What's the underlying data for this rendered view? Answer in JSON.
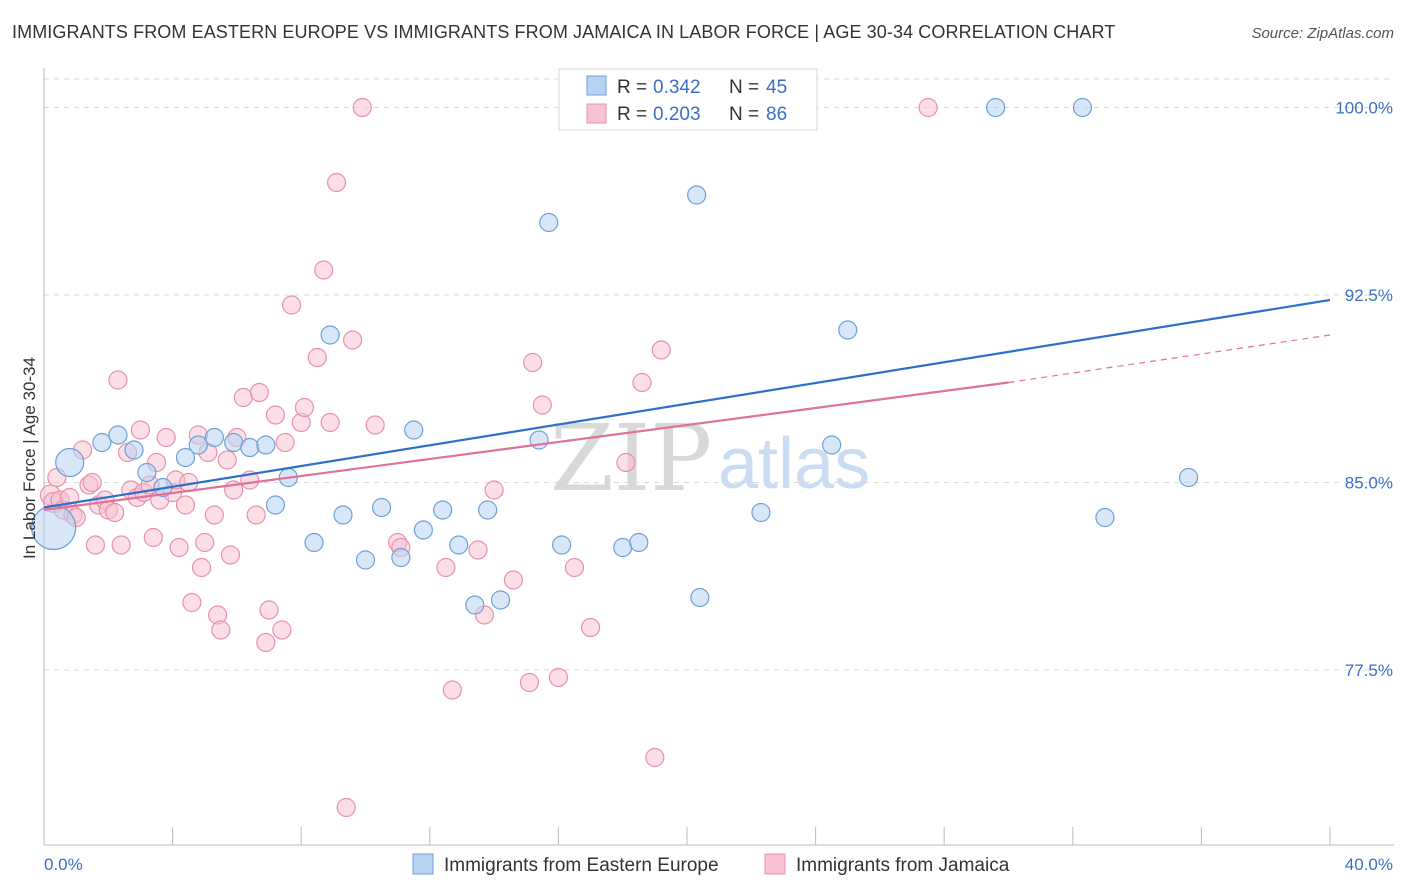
{
  "header": {
    "title": "IMMIGRANTS FROM EASTERN EUROPE VS IMMIGRANTS FROM JAMAICA IN LABOR FORCE | AGE 30-34 CORRELATION CHART",
    "source": "Source: ZipAtlas.com"
  },
  "watermark": {
    "part1": "ZIP",
    "part2": "atlas"
  },
  "colors": {
    "blue_fill": "#b8d3f2",
    "blue_stroke": "#6d9fd8",
    "blue_line": "#2f6fca",
    "pink_fill": "#f7c3d2",
    "pink_stroke": "#e890aa",
    "pink_line": "#e0729a",
    "grid": "#d9d9d9",
    "axis_text": "#3a6fc4"
  },
  "legend": {
    "rows": [
      {
        "r_label": "R = ",
        "r_value": "0.342",
        "n_label": "N = ",
        "n_value": "45"
      },
      {
        "r_label": "R = ",
        "r_value": "0.203",
        "n_label": "N = ",
        "n_value": "86"
      }
    ]
  },
  "chart_data": {
    "type": "scatter",
    "title": "IMMIGRANTS FROM EASTERN EUROPE VS IMMIGRANTS FROM JAMAICA IN LABOR FORCE | AGE 30-34 CORRELATION CHART",
    "xlabel": "",
    "ylabel": "In Labor Force | Age 30-34",
    "xlim": [
      0,
      40
    ],
    "ylim": [
      70.5,
      101.5
    ],
    "x_tick_labels": [
      "0.0%",
      "40.0%"
    ],
    "y_ticks": [
      77.5,
      85.0,
      92.5,
      100.0
    ],
    "y_tick_labels": [
      "77.5%",
      "85.0%",
      "92.5%",
      "100.0%"
    ],
    "grid": "horizontal dashed",
    "legend_position": "top-center",
    "series": [
      {
        "name": "Immigrants from Eastern Europe",
        "color": "#6d9fd8",
        "R": 0.342,
        "N": 45,
        "trend": {
          "x": [
            0,
            40
          ],
          "y": [
            84.0,
            92.3
          ]
        },
        "points": [
          [
            0.3,
            83.2,
            22
          ],
          [
            0.8,
            85.8,
            14
          ],
          [
            1.8,
            86.6,
            9
          ],
          [
            2.3,
            86.9,
            9
          ],
          [
            2.8,
            86.3,
            9
          ],
          [
            3.2,
            85.4,
            9
          ],
          [
            3.7,
            84.8,
            9
          ],
          [
            4.4,
            86.0,
            9
          ],
          [
            4.8,
            86.5,
            9
          ],
          [
            5.3,
            86.8,
            9
          ],
          [
            5.9,
            86.6,
            9
          ],
          [
            6.4,
            86.4,
            9
          ],
          [
            6.9,
            86.5,
            9
          ],
          [
            7.6,
            85.2,
            9
          ],
          [
            7.2,
            84.1,
            9
          ],
          [
            8.4,
            82.6,
            9
          ],
          [
            8.9,
            90.9,
            9
          ],
          [
            9.3,
            83.7,
            9
          ],
          [
            10.0,
            81.9,
            9
          ],
          [
            10.5,
            84.0,
            9
          ],
          [
            11.1,
            82.0,
            9
          ],
          [
            11.5,
            87.1,
            9
          ],
          [
            11.8,
            83.1,
            9
          ],
          [
            12.4,
            83.9,
            9
          ],
          [
            12.9,
            82.5,
            9
          ],
          [
            13.4,
            80.1,
            9
          ],
          [
            13.8,
            83.9,
            9
          ],
          [
            14.2,
            80.3,
            9
          ],
          [
            15.4,
            86.7,
            9
          ],
          [
            15.7,
            95.4,
            9
          ],
          [
            16.1,
            82.5,
            9
          ],
          [
            18.0,
            82.4,
            9
          ],
          [
            18.5,
            82.6,
            9
          ],
          [
            19.1,
            100.0,
            9
          ],
          [
            20.4,
            80.4,
            9
          ],
          [
            20.3,
            96.5,
            9
          ],
          [
            22.0,
            100.0,
            9
          ],
          [
            22.3,
            83.8,
            9
          ],
          [
            24.5,
            86.5,
            9
          ],
          [
            25.0,
            91.1,
            9
          ],
          [
            29.6,
            100.0,
            9
          ],
          [
            32.3,
            100.0,
            9
          ],
          [
            33.0,
            83.6,
            9
          ],
          [
            35.6,
            85.2,
            9
          ]
        ]
      },
      {
        "name": "Immigrants from Jamaica",
        "color": "#e890aa",
        "R": 0.203,
        "N": 86,
        "trend": {
          "x": [
            0,
            30
          ],
          "y": [
            83.9,
            89.0
          ]
        },
        "trend_dashed": {
          "x": [
            30,
            40
          ],
          "y": [
            89.0,
            90.9
          ]
        },
        "points": [
          [
            0.2,
            84.5,
            10
          ],
          [
            0.3,
            84.2,
            10
          ],
          [
            0.4,
            85.2,
            9
          ],
          [
            0.5,
            84.3,
            9
          ],
          [
            0.6,
            83.9,
            9
          ],
          [
            0.8,
            84.4,
            9
          ],
          [
            0.9,
            83.7,
            9
          ],
          [
            1.0,
            83.6,
            9
          ],
          [
            1.2,
            86.3,
            9
          ],
          [
            1.4,
            84.9,
            9
          ],
          [
            1.5,
            85.0,
            9
          ],
          [
            1.6,
            82.5,
            9
          ],
          [
            1.7,
            84.1,
            9
          ],
          [
            1.9,
            84.3,
            9
          ],
          [
            2.0,
            83.9,
            9
          ],
          [
            2.2,
            83.8,
            9
          ],
          [
            2.3,
            89.1,
            9
          ],
          [
            2.4,
            82.5,
            9
          ],
          [
            2.6,
            86.2,
            9
          ],
          [
            2.7,
            84.7,
            9
          ],
          [
            2.9,
            84.4,
            9
          ],
          [
            3.0,
            87.1,
            9
          ],
          [
            3.1,
            84.6,
            9
          ],
          [
            3.3,
            84.9,
            9
          ],
          [
            3.4,
            82.8,
            9
          ],
          [
            3.5,
            85.8,
            9
          ],
          [
            3.6,
            84.3,
            9
          ],
          [
            3.8,
            86.8,
            9
          ],
          [
            4.0,
            84.6,
            9
          ],
          [
            4.1,
            85.1,
            9
          ],
          [
            4.2,
            82.4,
            9
          ],
          [
            4.4,
            84.1,
            9
          ],
          [
            4.5,
            85.0,
            9
          ],
          [
            4.6,
            80.2,
            9
          ],
          [
            4.8,
            86.9,
            9
          ],
          [
            4.9,
            81.6,
            9
          ],
          [
            5.0,
            82.6,
            9
          ],
          [
            5.1,
            86.2,
            9
          ],
          [
            5.3,
            83.7,
            9
          ],
          [
            5.4,
            79.7,
            9
          ],
          [
            5.5,
            79.1,
            9
          ],
          [
            5.7,
            85.9,
            9
          ],
          [
            5.8,
            82.1,
            9
          ],
          [
            5.9,
            84.7,
            9
          ],
          [
            6.0,
            86.8,
            9
          ],
          [
            6.2,
            88.4,
            9
          ],
          [
            6.4,
            85.1,
            9
          ],
          [
            6.6,
            83.7,
            9
          ],
          [
            6.7,
            88.6,
            9
          ],
          [
            6.9,
            78.6,
            9
          ],
          [
            7.0,
            79.9,
            9
          ],
          [
            7.2,
            87.7,
            9
          ],
          [
            7.4,
            79.1,
            9
          ],
          [
            7.5,
            86.6,
            9
          ],
          [
            7.7,
            92.1,
            9
          ],
          [
            8.0,
            87.4,
            9
          ],
          [
            8.1,
            88.0,
            9
          ],
          [
            8.5,
            90.0,
            9
          ],
          [
            8.7,
            93.5,
            9
          ],
          [
            8.9,
            87.4,
            9
          ],
          [
            9.1,
            97.0,
            9
          ],
          [
            9.4,
            72.0,
            9
          ],
          [
            9.6,
            90.7,
            9
          ],
          [
            9.9,
            100.0,
            9
          ],
          [
            10.3,
            87.3,
            9
          ],
          [
            11.0,
            82.6,
            9
          ],
          [
            11.1,
            82.4,
            9
          ],
          [
            12.5,
            81.6,
            9
          ],
          [
            12.7,
            76.7,
            9
          ],
          [
            13.5,
            82.3,
            9
          ],
          [
            13.7,
            79.7,
            9
          ],
          [
            14.0,
            84.7,
            9
          ],
          [
            14.6,
            81.1,
            9
          ],
          [
            15.1,
            77.0,
            9
          ],
          [
            15.2,
            89.8,
            9
          ],
          [
            15.5,
            88.1,
            9
          ],
          [
            16.0,
            77.2,
            9
          ],
          [
            16.5,
            81.6,
            9
          ],
          [
            17.0,
            79.2,
            9
          ],
          [
            18.0,
            100.0,
            9
          ],
          [
            18.1,
            85.8,
            9
          ],
          [
            18.6,
            89.0,
            9
          ],
          [
            19.0,
            74.0,
            9
          ],
          [
            19.2,
            90.3,
            9
          ],
          [
            20.5,
            100.0,
            9
          ],
          [
            27.5,
            100.0,
            9
          ]
        ]
      }
    ]
  },
  "bottom_legend": {
    "items": [
      "Immigrants from Eastern Europe",
      "Immigrants from Jamaica"
    ]
  }
}
